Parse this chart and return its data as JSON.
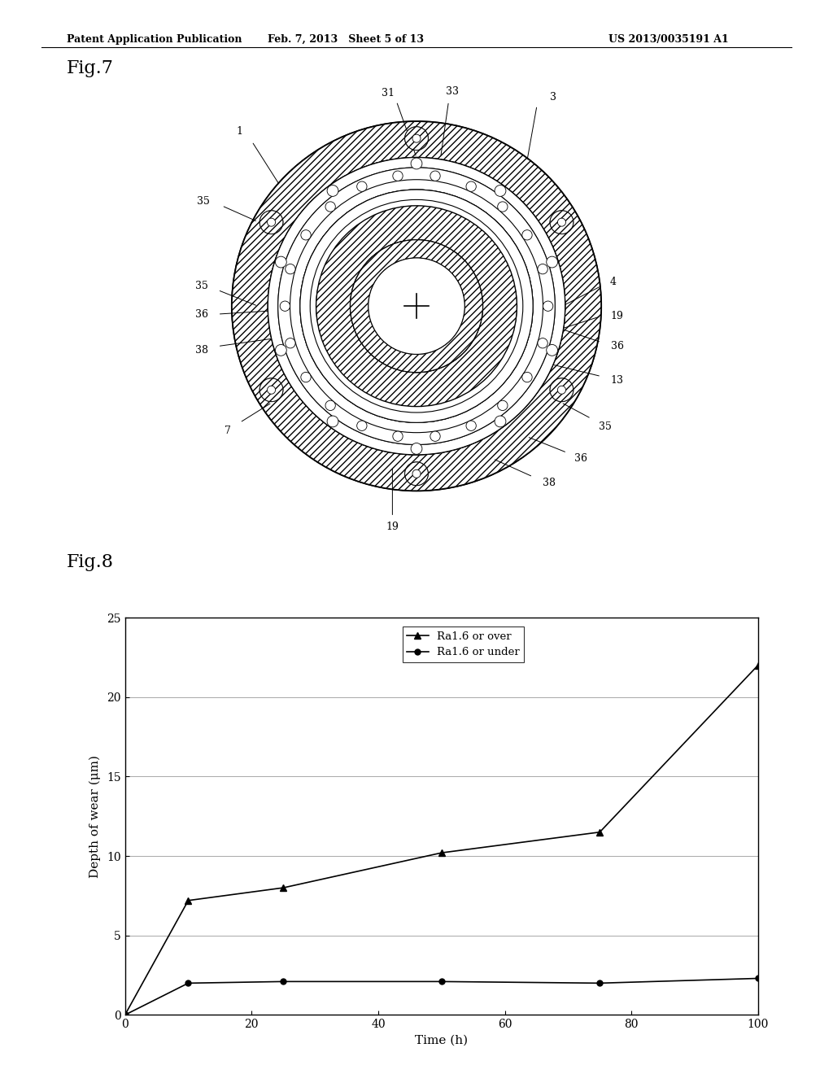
{
  "header_left": "Patent Application Publication",
  "header_mid": "Feb. 7, 2013   Sheet 5 of 13",
  "header_right": "US 2013/0035191 A1",
  "fig7_title": "Fig.7",
  "fig8_title": "Fig.8",
  "chart_xlabel": "Time (h)",
  "chart_ylabel": "Depth of wear (μm)",
  "chart_xlim": [
    0,
    100
  ],
  "chart_ylim": [
    0,
    25
  ],
  "chart_xticks": [
    0,
    20,
    40,
    60,
    80,
    100
  ],
  "chart_yticks": [
    0,
    5,
    10,
    15,
    20,
    25
  ],
  "series1_label": "Ra1.6 or over",
  "series1_x": [
    0,
    10,
    25,
    50,
    75,
    100
  ],
  "series1_y": [
    0,
    7.2,
    8.0,
    10.2,
    11.5,
    22.0
  ],
  "series2_label": "Ra1.6 or under",
  "series2_x": [
    0,
    10,
    25,
    50,
    75,
    100
  ],
  "series2_y": [
    0,
    2.0,
    2.1,
    2.1,
    2.0,
    2.3
  ],
  "bg_color": "#ffffff"
}
